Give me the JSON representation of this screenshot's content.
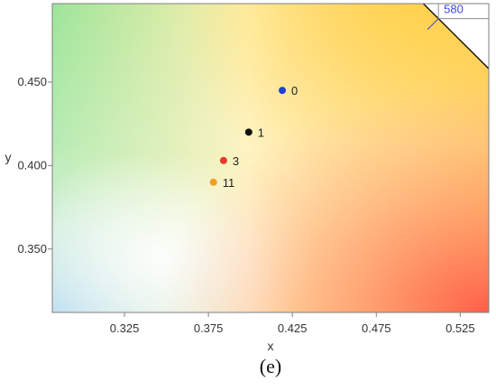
{
  "panel_label": "(e)",
  "colors": {
    "frame": "#7f7f7f",
    "grid": "#8c8c8c",
    "locus_label": "#3b48d8"
  },
  "chart_data": {
    "type": "scatter",
    "title": "",
    "xlabel": "x",
    "ylabel": "y",
    "xlim": [
      0.282,
      0.542
    ],
    "ylim": [
      0.312,
      0.497
    ],
    "x_ticks": [
      {
        "value": 0.325,
        "label": "0.325"
      },
      {
        "value": 0.375,
        "label": "0.375"
      },
      {
        "value": 0.425,
        "label": "0.425"
      },
      {
        "value": 0.475,
        "label": "0.475"
      },
      {
        "value": 0.525,
        "label": "0.525"
      }
    ],
    "y_ticks": [
      {
        "value": 0.35,
        "label": "0.350"
      },
      {
        "value": 0.4,
        "label": "0.400"
      },
      {
        "value": 0.45,
        "label": "0.450"
      }
    ],
    "background": "CIE 1931 chromaticity diagram (color gradient)",
    "points": [
      {
        "label": "0",
        "x": 0.419,
        "y": 0.445,
        "color": "#1f3fe0"
      },
      {
        "label": "1",
        "x": 0.399,
        "y": 0.42,
        "color": "#111111"
      },
      {
        "label": "3",
        "x": 0.384,
        "y": 0.403,
        "color": "#e83a2a"
      },
      {
        "label": "11",
        "x": 0.378,
        "y": 0.39,
        "color": "#f0a020"
      }
    ],
    "spectral_locus": {
      "label": "580",
      "points": [
        {
          "x": 0.503,
          "y": 0.497
        },
        {
          "x": 0.512,
          "y": 0.488
        },
        {
          "x": 0.53,
          "y": 0.47
        },
        {
          "x": 0.542,
          "y": 0.458
        }
      ],
      "marker": {
        "x": 0.512,
        "y": 0.488
      }
    }
  }
}
